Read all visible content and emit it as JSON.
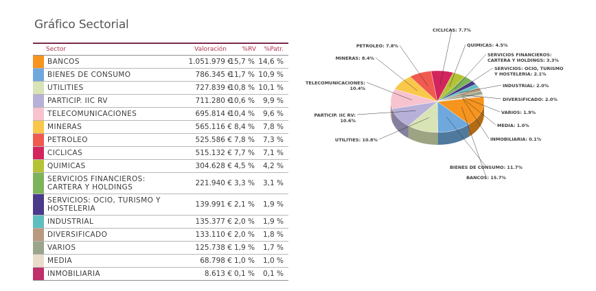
{
  "title": "Gráfico Sectorial",
  "table": {
    "headers": {
      "sector": "Sector",
      "valoracion": "Valoración",
      "rv": "%RV",
      "patr": "%Patr."
    },
    "rows": [
      {
        "name": "BANCOS",
        "color": "#f7941d",
        "valor": "1.051.979 €",
        "rv": "15,7 %",
        "patr": "14,6 %"
      },
      {
        "name": "BIENES DE CONSUMO",
        "color": "#6fa8dc",
        "valor": "786.345 €",
        "rv": "11,7 %",
        "patr": "10,9 %"
      },
      {
        "name": "UTILITIES",
        "color": "#d9e4b6",
        "valor": "727.839 €",
        "rv": "10,8 %",
        "patr": "10,1 %"
      },
      {
        "name": "PARTICIP. IIC RV",
        "color": "#b7b0d8",
        "valor": "711.280 €",
        "rv": "10,6 %",
        "patr": "9,9 %"
      },
      {
        "name": "TELECOMUNICACIONES",
        "color": "#f7c3cf",
        "valor": "695.814 €",
        "rv": "10,4 %",
        "patr": "9,6 %"
      },
      {
        "name": "MINERAS",
        "color": "#f9c84a",
        "valor": "565.116 €",
        "rv": "8,4 %",
        "patr": "7,8 %"
      },
      {
        "name": "PETROLEO",
        "color": "#f05a4f",
        "valor": "525.586 €",
        "rv": "7,8 %",
        "patr": "7,3 %"
      },
      {
        "name": "CICLICAS",
        "color": "#d3245e",
        "valor": "515.132 €",
        "rv": "7,7 %",
        "patr": "7,1 %"
      },
      {
        "name": "QUIMICAS",
        "color": "#b5c235",
        "valor": "304.628 €",
        "rv": "4,5 %",
        "patr": "4,2 %"
      },
      {
        "name": "SERVICIOS FINANCIEROS: CARTERA Y HOLDINGS",
        "color": "#7db35a",
        "valor": "221.940 €",
        "rv": "3,3 %",
        "patr": "3,1 %"
      },
      {
        "name": "SERVICIOS: OCIO, TURISMO Y HOSTELERIA",
        "color": "#4a3a8c",
        "valor": "139.991 €",
        "rv": "2,1 %",
        "patr": "1,9 %"
      },
      {
        "name": "INDUSTRIAL",
        "color": "#5fbfbf",
        "valor": "135.377 €",
        "rv": "2,0 %",
        "patr": "1,9 %"
      },
      {
        "name": "DIVERSIFICADO",
        "color": "#b89a7e",
        "valor": "133.110 €",
        "rv": "2,0 %",
        "patr": "1,8 %"
      },
      {
        "name": "VARIOS",
        "color": "#9ba58a",
        "valor": "125.738 €",
        "rv": "1,9 %",
        "patr": "1,7 %"
      },
      {
        "name": "MEDIA",
        "color": "#e9dccb",
        "valor": "68.798 €",
        "rv": "1,0 %",
        "patr": "1,0 %"
      },
      {
        "name": "INMOBILIARIA",
        "color": "#c0306a",
        "valor": "8.613 €",
        "rv": "0,1 %",
        "patr": "0,1 %"
      }
    ]
  },
  "chart_data": {
    "type": "pie",
    "title": "",
    "slices": [
      {
        "label": "BANCOS: 15.7%",
        "value": 15.7,
        "color": "#f7941d"
      },
      {
        "label": "BIENES DE CONSUMO: 11.7%",
        "value": 11.7,
        "color": "#6fa8dc"
      },
      {
        "label": "UTILITIES: 10.8%",
        "value": 10.8,
        "color": "#d9e4b6"
      },
      {
        "label": "PARTICIP. IIC RV: 10.6%",
        "value": 10.6,
        "color": "#b7b0d8"
      },
      {
        "label": "TELECOMUNICACIONES: 10.4%",
        "value": 10.4,
        "color": "#f7c3cf"
      },
      {
        "label": "MINERAS: 8.4%",
        "value": 8.4,
        "color": "#f9c84a"
      },
      {
        "label": "PETROLEO: 7.8%",
        "value": 7.8,
        "color": "#f05a4f"
      },
      {
        "label": "CICLICAS: 7.7%",
        "value": 7.7,
        "color": "#d3245e"
      },
      {
        "label": "QUIMICAS: 4.5%",
        "value": 4.5,
        "color": "#b5c235"
      },
      {
        "label": "SERVICIOS FINANCIEROS: CARTERA Y HOLDINGS: 3.3%",
        "value": 3.3,
        "color": "#7db35a"
      },
      {
        "label": "SERVICIOS: OCIO, TURISMO Y HOSTELERIA: 2.1%",
        "value": 2.1,
        "color": "#4a3a8c"
      },
      {
        "label": "INDUSTRIAL: 2.0%",
        "value": 2.0,
        "color": "#5fbfbf"
      },
      {
        "label": "DIVERSIFICADO: 2.0%",
        "value": 2.0,
        "color": "#b89a7e"
      },
      {
        "label": "VARIOS: 1.9%",
        "value": 1.9,
        "color": "#9ba58a"
      },
      {
        "label": "MEDIA: 1.0%",
        "value": 1.0,
        "color": "#e9dccb"
      },
      {
        "label": "INMOBILIARIA: 0.1%",
        "value": 0.1,
        "color": "#c0306a"
      }
    ]
  }
}
